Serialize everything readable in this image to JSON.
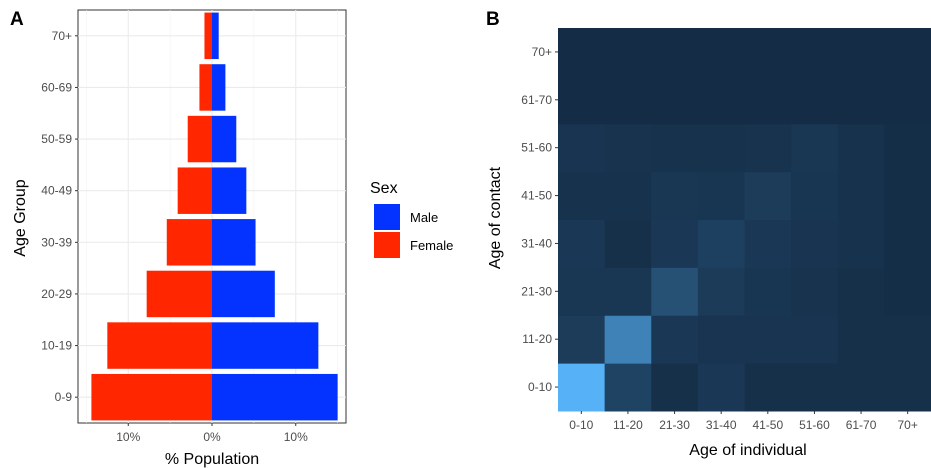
{
  "chart_data": [
    {
      "panel": "A",
      "type": "bar",
      "orientation": "horizontal",
      "layout": "population-pyramid",
      "categories": [
        "0-9",
        "10-19",
        "20-29",
        "30-39",
        "40-49",
        "50-59",
        "60-69",
        "70+"
      ],
      "series": [
        {
          "name": "Male",
          "color": "#0433FF",
          "values": [
            15.0,
            12.7,
            7.5,
            5.2,
            4.1,
            2.9,
            1.6,
            0.8
          ]
        },
        {
          "name": "Female",
          "color": "#FF2600",
          "values": [
            14.4,
            12.5,
            7.8,
            5.4,
            4.1,
            2.9,
            1.5,
            0.9
          ]
        }
      ],
      "xlabel": "% Population",
      "ylabel": "Age Group",
      "xlim": [
        -16,
        16
      ],
      "xticks": [
        -10,
        0,
        10
      ],
      "xtick_labels": [
        "10%",
        "0%",
        "10%"
      ],
      "legend": {
        "title": "Sex",
        "position": "right",
        "entries": [
          "Male",
          "Female"
        ]
      },
      "grid": true
    },
    {
      "panel": "B",
      "type": "heatmap",
      "x_categories": [
        "0-10",
        "11-20",
        "21-30",
        "31-40",
        "41-50",
        "51-60",
        "61-70",
        "70+"
      ],
      "y_categories": [
        "0-10",
        "11-20",
        "21-30",
        "31-40",
        "41-50",
        "51-60",
        "61-70",
        "70+"
      ],
      "xlabel": "Age of individual",
      "ylabel": "Age of contact",
      "color_low": "#132B43",
      "color_high": "#56B1F7",
      "values": [
        [
          1.0,
          0.18,
          0.04,
          0.1,
          0.04,
          0.04,
          0.04,
          0.04
        ],
        [
          0.13,
          0.65,
          0.1,
          0.07,
          0.07,
          0.07,
          0.04,
          0.04
        ],
        [
          0.09,
          0.09,
          0.28,
          0.12,
          0.08,
          0.06,
          0.04,
          0.02
        ],
        [
          0.1,
          0.04,
          0.1,
          0.16,
          0.1,
          0.07,
          0.05,
          0.02
        ],
        [
          0.05,
          0.05,
          0.09,
          0.08,
          0.13,
          0.08,
          0.05,
          0.02
        ],
        [
          0.07,
          0.06,
          0.05,
          0.05,
          0.06,
          0.09,
          0.05,
          0.02
        ],
        [
          0.01,
          0.01,
          0.01,
          0.01,
          0.01,
          0.01,
          0.01,
          0.01
        ],
        [
          0.01,
          0.01,
          0.01,
          0.01,
          0.01,
          0.01,
          0.01,
          0.01
        ]
      ]
    }
  ]
}
